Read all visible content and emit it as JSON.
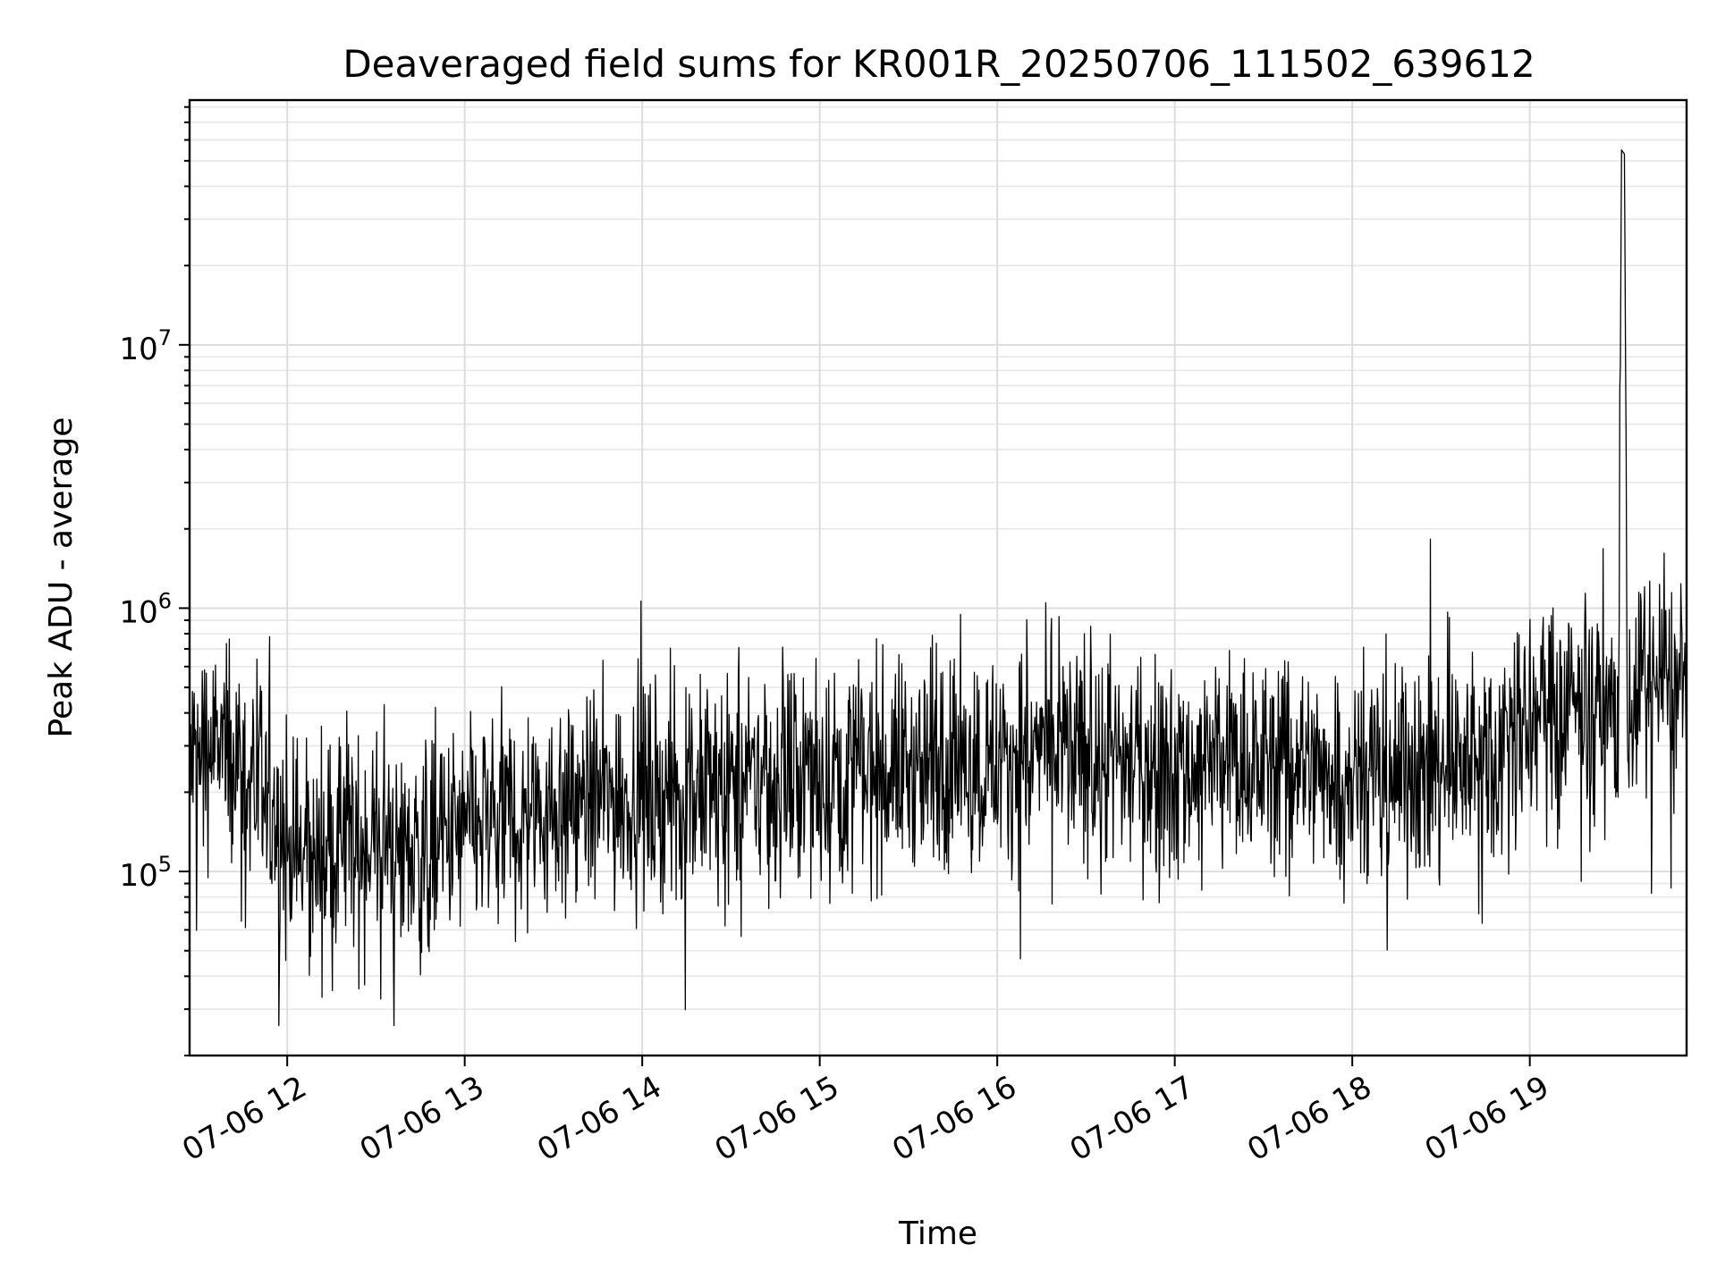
{
  "chart_data": {
    "type": "line",
    "title": "Deaveraged field sums for KR001R_20250706_111502_639612",
    "xlabel": "Time",
    "ylabel": "Peak ADU - average",
    "yscale": "log",
    "grid": "on",
    "xlim": [
      "2025-07-06 11:27",
      "2025-07-06 19:53"
    ],
    "ylim": [
      20000,
      85000000
    ],
    "x_ticks": [
      {
        "t": "2025-07-06 12:00",
        "label": "07-06 12"
      },
      {
        "t": "2025-07-06 13:00",
        "label": "07-06 13"
      },
      {
        "t": "2025-07-06 14:00",
        "label": "07-06 14"
      },
      {
        "t": "2025-07-06 15:00",
        "label": "07-06 15"
      },
      {
        "t": "2025-07-06 16:00",
        "label": "07-06 16"
      },
      {
        "t": "2025-07-06 17:00",
        "label": "07-06 17"
      },
      {
        "t": "2025-07-06 18:00",
        "label": "07-06 18"
      },
      {
        "t": "2025-07-06 19:00",
        "label": "07-06 19"
      }
    ],
    "y_ticks": [
      {
        "value": 100000,
        "base": "10",
        "exp": "5"
      },
      {
        "value": 1000000,
        "base": "10",
        "exp": "6"
      },
      {
        "value": 10000000,
        "base": "10",
        "exp": "7"
      }
    ],
    "series": [
      {
        "color": "#000000",
        "points": [
          [
            "2025-07-06 11:27",
            250000
          ],
          [
            "2025-07-06 11:35",
            300000
          ],
          [
            "2025-07-06 11:45",
            260000
          ],
          [
            "2025-07-06 11:55",
            150000
          ],
          [
            "2025-07-06 12:05",
            110000
          ],
          [
            "2025-07-06 12:15",
            120000
          ],
          [
            "2025-07-06 12:30",
            130000
          ],
          [
            "2025-07-06 12:45",
            115000
          ],
          [
            "2025-07-06 13:00",
            140000
          ],
          [
            "2025-07-06 13:15",
            160000
          ],
          [
            "2025-07-06 13:30",
            175000
          ],
          [
            "2025-07-06 13:45",
            190000
          ],
          [
            "2025-07-06 14:00",
            200000
          ],
          [
            "2025-07-06 14:15",
            195000
          ],
          [
            "2025-07-06 14:30",
            210000
          ],
          [
            "2025-07-06 14:45",
            225000
          ],
          [
            "2025-07-06 15:00",
            230000
          ],
          [
            "2025-07-06 15:15",
            240000
          ],
          [
            "2025-07-06 15:30",
            250000
          ],
          [
            "2025-07-06 15:45",
            255000
          ],
          [
            "2025-07-06 16:00",
            265000
          ],
          [
            "2025-07-06 16:15",
            290000
          ],
          [
            "2025-07-06 16:30",
            270000
          ],
          [
            "2025-07-06 16:45",
            260000
          ],
          [
            "2025-07-06 17:00",
            250000
          ],
          [
            "2025-07-06 17:15",
            255000
          ],
          [
            "2025-07-06 17:30",
            260000
          ],
          [
            "2025-07-06 17:45",
            250000
          ],
          [
            "2025-07-06 18:00",
            245000
          ],
          [
            "2025-07-06 18:15",
            240000
          ],
          [
            "2025-07-06 18:30",
            230000
          ],
          [
            "2025-07-06 18:45",
            290000
          ],
          [
            "2025-07-06 19:00",
            360000
          ],
          [
            "2025-07-06 19:10",
            440000
          ],
          [
            "2025-07-06 19:20",
            420000
          ],
          [
            "2025-07-06 19:30",
            390000
          ],
          [
            "2025-07-06 19:31",
            55000000
          ],
          [
            "2025-07-06 19:32",
            53000000
          ],
          [
            "2025-07-06 19:33",
            400000
          ],
          [
            "2025-07-06 19:40",
            520000
          ],
          [
            "2025-07-06 19:53",
            470000
          ]
        ]
      }
    ],
    "annotations": [
      {
        "t": "2025-07-06 19:32",
        "value": 55000000,
        "label": ""
      }
    ]
  }
}
